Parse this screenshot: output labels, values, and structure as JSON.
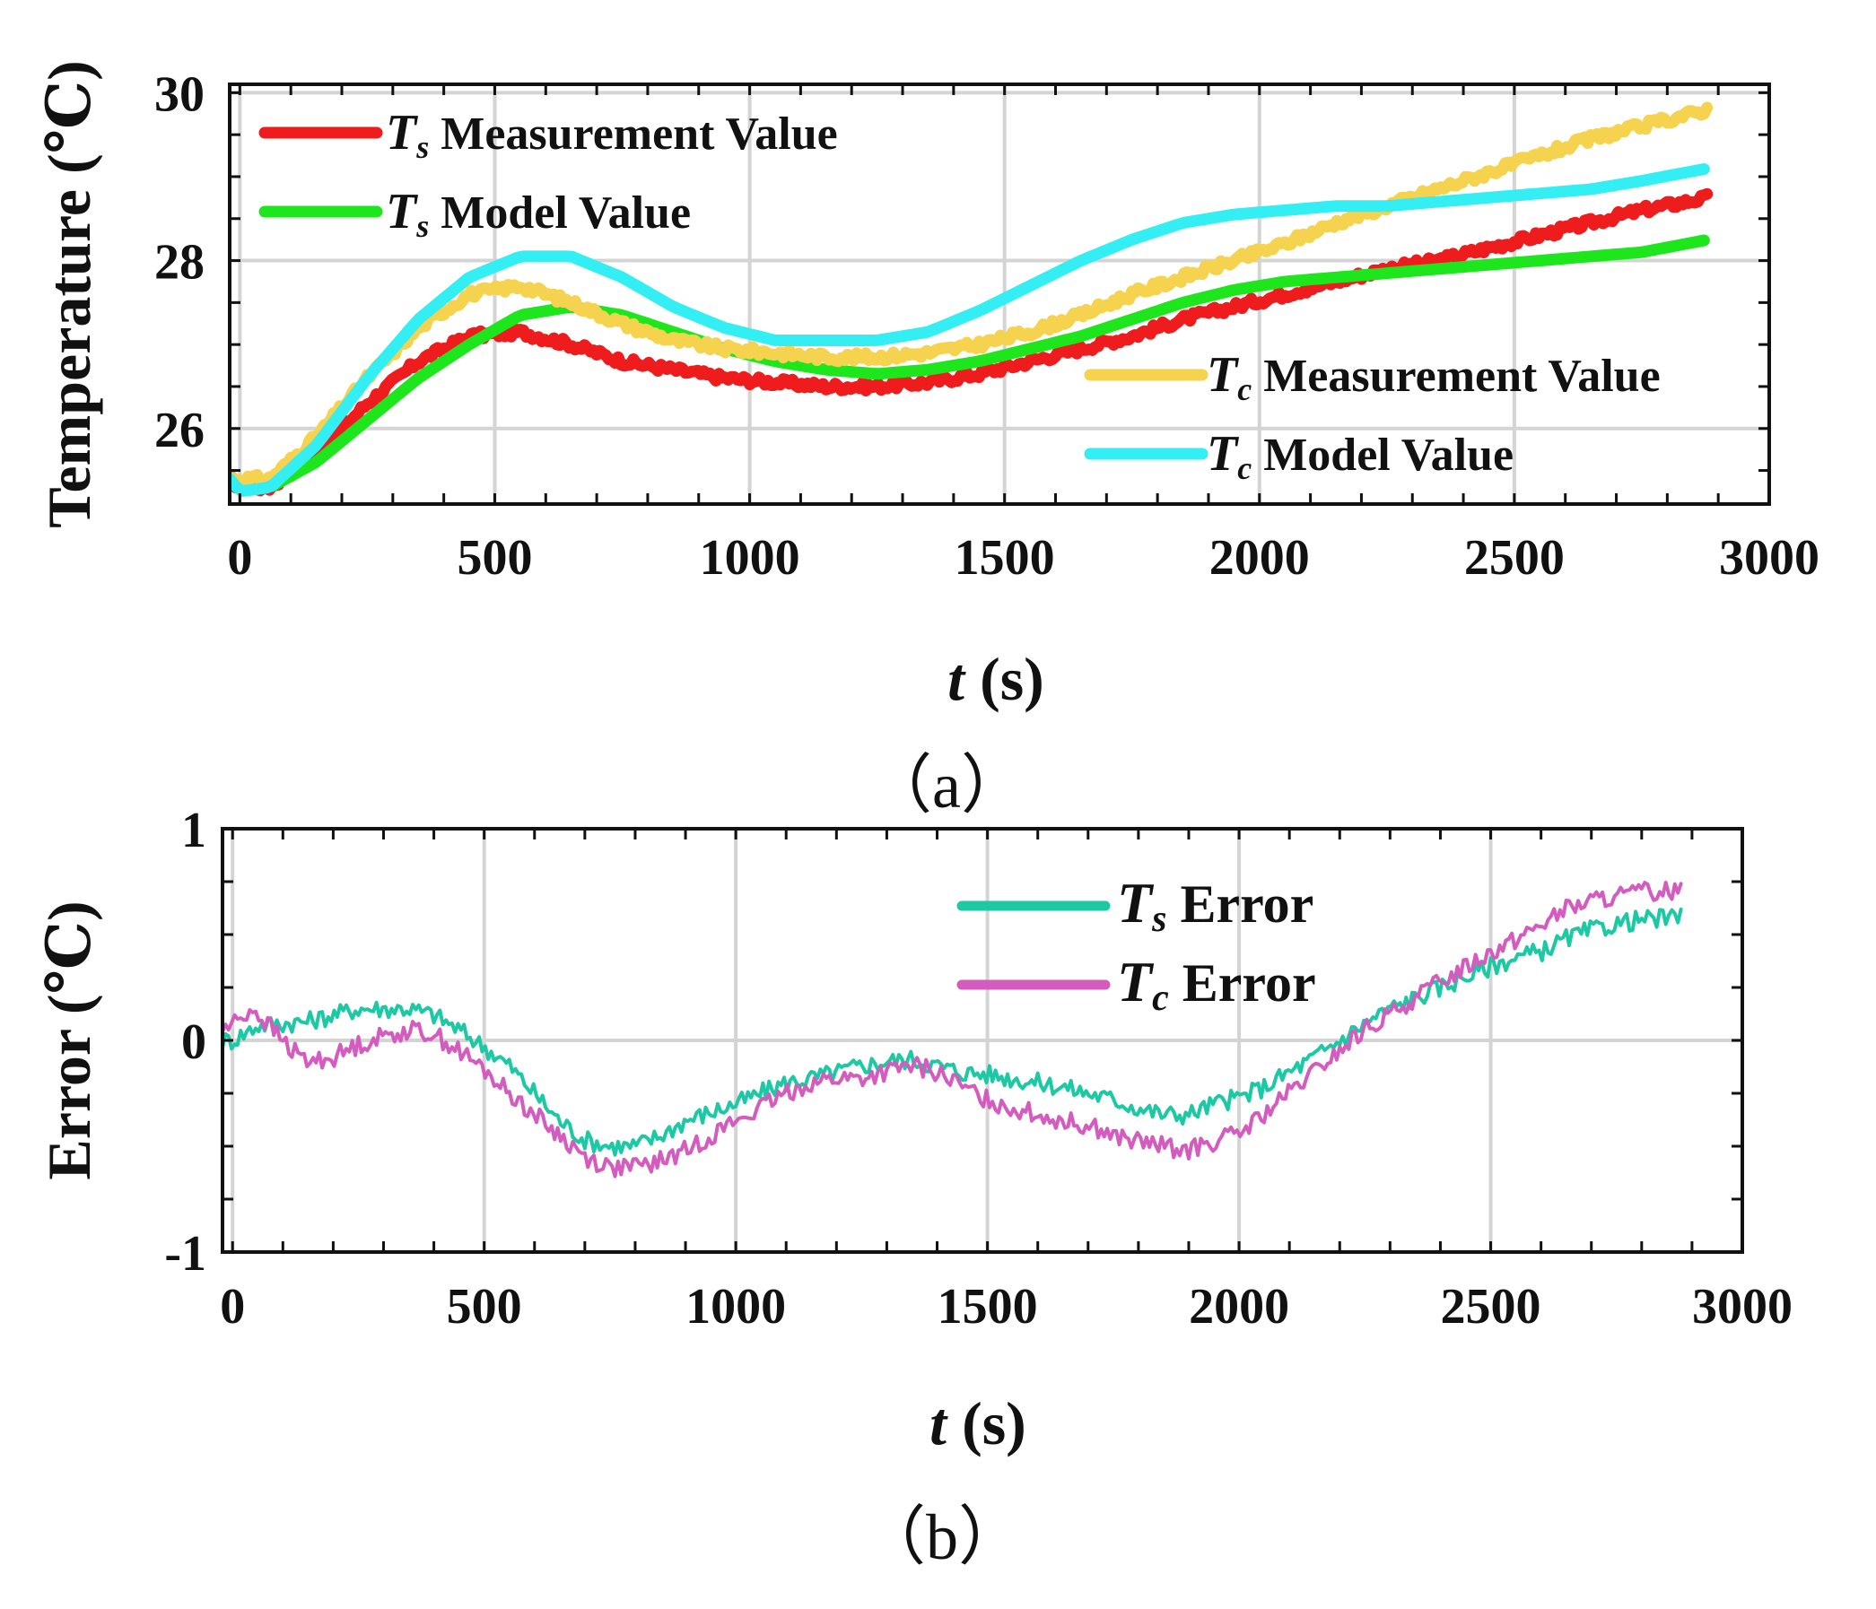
{
  "chart_data": [
    {
      "panel": "a",
      "type": "line",
      "caption": "（a）",
      "xlabel": {
        "var": "t",
        "unit": " (s)"
      },
      "ylabel": "Temperature (℃)",
      "xlim": [
        -20,
        3000
      ],
      "ylim": [
        25.1,
        30.1
      ],
      "xticks": [
        0,
        500,
        1000,
        1500,
        2000,
        2500,
        3000
      ],
      "yticks": [
        26,
        28,
        30
      ],
      "grid": true,
      "legend_placement": [
        "top-left",
        "bottom-right"
      ],
      "series": [
        {
          "sym": "T",
          "sub": "s",
          "name": " Measurement Value",
          "color": "#ee1c1c",
          "noise": 0.05,
          "x": [
            -20,
            0,
            60,
            150,
            250,
            350,
            450,
            550,
            650,
            750,
            850,
            950,
            1050,
            1150,
            1250,
            1350,
            1450,
            1550,
            1650,
            1750,
            1850,
            1950,
            2050,
            2150,
            2250,
            2350,
            2450,
            2550,
            2650,
            2750,
            2880
          ],
          "y": [
            25.4,
            25.3,
            25.3,
            25.7,
            26.3,
            26.8,
            27.1,
            27.15,
            27.0,
            26.8,
            26.7,
            26.6,
            26.55,
            26.5,
            26.5,
            26.55,
            26.65,
            26.8,
            26.95,
            27.1,
            27.3,
            27.45,
            27.6,
            27.75,
            27.9,
            28.0,
            28.15,
            28.3,
            28.45,
            28.6,
            28.75
          ]
        },
        {
          "sym": "T",
          "sub": "s",
          "name": " Model Value",
          "color": "#1de61d",
          "noise": 0,
          "x": [
            -20,
            0,
            60,
            150,
            250,
            350,
            450,
            550,
            650,
            750,
            850,
            950,
            1050,
            1150,
            1250,
            1350,
            1450,
            1550,
            1650,
            1750,
            1850,
            1950,
            2050,
            2150,
            2250,
            2350,
            2450,
            2550,
            2650,
            2750,
            2880
          ],
          "y": [
            25.4,
            25.35,
            25.3,
            25.6,
            26.1,
            26.6,
            27.0,
            27.35,
            27.45,
            27.35,
            27.15,
            26.95,
            26.8,
            26.7,
            26.65,
            26.7,
            26.8,
            26.95,
            27.1,
            27.3,
            27.5,
            27.65,
            27.75,
            27.8,
            27.85,
            27.9,
            27.95,
            28.0,
            28.05,
            28.1,
            28.25
          ]
        },
        {
          "sym": "T",
          "sub": "c",
          "name": " Measurement Value",
          "color": "#f5d34e",
          "noise": 0.05,
          "x": [
            -20,
            0,
            60,
            150,
            250,
            350,
            450,
            550,
            650,
            750,
            850,
            950,
            1050,
            1150,
            1250,
            1350,
            1450,
            1550,
            1650,
            1750,
            1850,
            1950,
            2050,
            2150,
            2250,
            2350,
            2450,
            2550,
            2650,
            2750,
            2880
          ],
          "y": [
            25.4,
            25.4,
            25.4,
            25.9,
            26.6,
            27.2,
            27.6,
            27.7,
            27.5,
            27.25,
            27.05,
            26.95,
            26.9,
            26.85,
            26.85,
            26.9,
            27.0,
            27.15,
            27.35,
            27.6,
            27.8,
            28.0,
            28.2,
            28.45,
            28.65,
            28.85,
            29.05,
            29.25,
            29.45,
            29.6,
            29.8
          ]
        },
        {
          "sym": "T",
          "sub": "c",
          "name": " Model Value",
          "color": "#33eef2",
          "noise": 0,
          "x": [
            -20,
            0,
            60,
            150,
            250,
            350,
            450,
            550,
            650,
            750,
            850,
            950,
            1050,
            1150,
            1250,
            1350,
            1450,
            1550,
            1650,
            1750,
            1850,
            1950,
            2050,
            2150,
            2250,
            2350,
            2450,
            2550,
            2650,
            2750,
            2880
          ],
          "y": [
            25.4,
            25.25,
            25.3,
            25.8,
            26.6,
            27.3,
            27.8,
            28.05,
            28.05,
            27.8,
            27.45,
            27.2,
            27.05,
            27.05,
            27.05,
            27.15,
            27.4,
            27.7,
            28.0,
            28.25,
            28.45,
            28.55,
            28.6,
            28.65,
            28.65,
            28.7,
            28.75,
            28.8,
            28.85,
            28.95,
            29.1
          ]
        }
      ]
    },
    {
      "panel": "b",
      "type": "line",
      "caption": "（b）",
      "xlabel": {
        "var": "t",
        "unit": " (s)"
      },
      "ylabel": "Error (℃)",
      "xlim": [
        -20,
        3000
      ],
      "ylim": [
        -1,
        1
      ],
      "xticks": [
        0,
        500,
        1000,
        1500,
        2000,
        2500,
        3000
      ],
      "yticks": [
        -1,
        0,
        1
      ],
      "grid": true,
      "legend_placement": "top-right",
      "series": [
        {
          "sym": "T",
          "sub": "s",
          "name": " Error",
          "color": "#1dc9a4",
          "noise": 0.045,
          "x": [
            -20,
            0,
            50,
            100,
            150,
            200,
            250,
            300,
            350,
            400,
            450,
            500,
            550,
            600,
            650,
            700,
            750,
            800,
            850,
            900,
            950,
            1000,
            1050,
            1100,
            1150,
            1200,
            1250,
            1300,
            1350,
            1400,
            1450,
            1500,
            1550,
            1600,
            1650,
            1700,
            1750,
            1800,
            1850,
            1900,
            1950,
            2000,
            2050,
            2100,
            2150,
            2200,
            2250,
            2300,
            2350,
            2400,
            2450,
            2500,
            2550,
            2600,
            2650,
            2700,
            2750,
            2800,
            2880
          ],
          "y": [
            0,
            0,
            0.07,
            0.08,
            0.09,
            0.12,
            0.15,
            0.15,
            0.15,
            0.12,
            0.05,
            -0.03,
            -0.12,
            -0.25,
            -0.38,
            -0.47,
            -0.5,
            -0.5,
            -0.45,
            -0.38,
            -0.34,
            -0.3,
            -0.25,
            -0.2,
            -0.18,
            -0.15,
            -0.12,
            -0.1,
            -0.09,
            -0.12,
            -0.15,
            -0.16,
            -0.18,
            -0.2,
            -0.22,
            -0.25,
            -0.28,
            -0.32,
            -0.35,
            -0.35,
            -0.3,
            -0.27,
            -0.22,
            -0.15,
            -0.08,
            0,
            0.08,
            0.15,
            0.2,
            0.25,
            0.3,
            0.35,
            0.39,
            0.42,
            0.48,
            0.52,
            0.55,
            0.57,
            0.58
          ]
        },
        {
          "sym": "T",
          "sub": "c",
          "name": " Error",
          "color": "#d45cbf",
          "noise": 0.045,
          "x": [
            -20,
            0,
            40,
            80,
            120,
            150,
            200,
            250,
            300,
            350,
            400,
            450,
            500,
            550,
            600,
            650,
            700,
            750,
            800,
            850,
            900,
            950,
            1000,
            1050,
            1100,
            1150,
            1200,
            1250,
            1300,
            1350,
            1400,
            1450,
            1500,
            1550,
            1600,
            1650,
            1700,
            1750,
            1800,
            1850,
            1900,
            1950,
            2000,
            2050,
            2100,
            2150,
            2200,
            2250,
            2300,
            2350,
            2400,
            2450,
            2500,
            2550,
            2600,
            2650,
            2700,
            2750,
            2800,
            2880
          ],
          "y": [
            0.05,
            0.08,
            0.15,
            0.05,
            -0.05,
            -0.1,
            -0.08,
            -0.02,
            0.02,
            0.05,
            0.03,
            -0.05,
            -0.14,
            -0.25,
            -0.35,
            -0.45,
            -0.55,
            -0.6,
            -0.6,
            -0.57,
            -0.52,
            -0.45,
            -0.38,
            -0.32,
            -0.25,
            -0.2,
            -0.18,
            -0.18,
            -0.15,
            -0.12,
            -0.15,
            -0.22,
            -0.28,
            -0.32,
            -0.35,
            -0.38,
            -0.4,
            -0.45,
            -0.48,
            -0.5,
            -0.52,
            -0.48,
            -0.44,
            -0.35,
            -0.25,
            -0.15,
            -0.05,
            0.05,
            0.12,
            0.2,
            0.28,
            0.35,
            0.42,
            0.48,
            0.55,
            0.62,
            0.66,
            0.68,
            0.7,
            0.71
          ]
        }
      ]
    }
  ]
}
